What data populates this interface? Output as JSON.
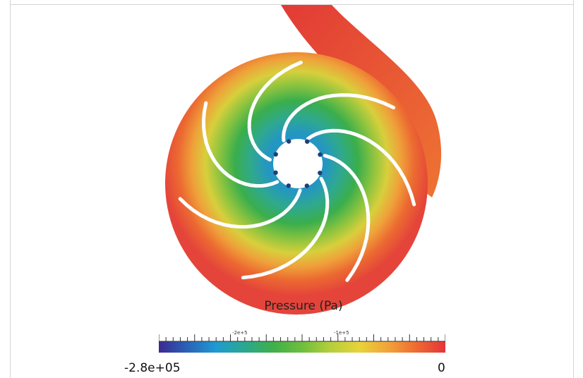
{
  "figure": {
    "legend_title": "Pressure (Pa)",
    "colorbar": {
      "min_label": "-2.8e+05",
      "max_label": "0",
      "min_value": -280000,
      "max_value": 0,
      "major_ticks": [
        {
          "label": "-2e+5",
          "value": -200000
        },
        {
          "label": "-1e+5",
          "value": -100000
        }
      ],
      "colormap": [
        "#3b2a8f",
        "#2a62b8",
        "#1f9bd1",
        "#2aa88f",
        "#3fb04a",
        "#6fbe3d",
        "#b5cf3a",
        "#e8d33a",
        "#f2a33a",
        "#ee6a32",
        "#e5343a"
      ]
    },
    "impeller": {
      "blade_count": 7,
      "hub_bolt_count": 8
    }
  }
}
